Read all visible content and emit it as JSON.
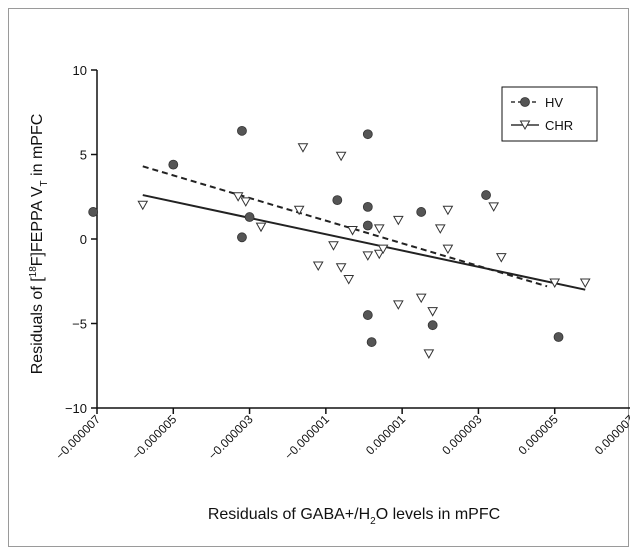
{
  "chart_data": {
    "type": "scatter",
    "xlabel": {
      "pre": "Residuals of GABA+/H",
      "sub": "2",
      "post": "O levels in mPFC"
    },
    "ylabel": {
      "a": "Residuals of [",
      "sup": "18",
      "b": "F]FEPPA V",
      "sub": "T",
      "c": " in mPFC"
    },
    "xlim": [
      -7e-06,
      7e-06
    ],
    "ylim": [
      -10,
      10
    ],
    "x_ticks": [
      -7e-06,
      -5e-06,
      -3e-06,
      -1e-06,
      1e-06,
      3e-06,
      5e-06,
      7e-06
    ],
    "x_tick_labels": [
      "−0.000007",
      "−0.000005",
      "−0.000003",
      "−0.000001",
      "0.000001",
      "0.000003",
      "0.000005",
      "0.000007"
    ],
    "y_ticks": [
      -10,
      -5,
      0,
      5,
      10
    ],
    "y_tick_labels": [
      "−10",
      "−5",
      "0",
      "5",
      "10"
    ],
    "grid": false,
    "legend_position": "top-right",
    "series": [
      {
        "name": "HV",
        "marker": "filled-circle",
        "color": "#555555",
        "points": [
          [
            -7.1e-06,
            1.6
          ],
          [
            -5e-06,
            4.4
          ],
          [
            -3.2e-06,
            6.4
          ],
          [
            -3.2e-06,
            0.1
          ],
          [
            -3e-06,
            1.3
          ],
          [
            -7e-07,
            2.3
          ],
          [
            1e-07,
            6.2
          ],
          [
            1e-07,
            1.9
          ],
          [
            1e-07,
            0.8
          ],
          [
            1e-07,
            -4.5
          ],
          [
            2e-07,
            -6.1
          ],
          [
            1.5e-06,
            1.6
          ],
          [
            1.8e-06,
            -5.1
          ],
          [
            3.2e-06,
            2.6
          ],
          [
            5.1e-06,
            -5.8
          ]
        ],
        "fit": {
          "line_style": "dashed",
          "x": [
            -5.8e-06,
            4.8e-06
          ],
          "y": [
            4.3,
            -2.8
          ]
        }
      },
      {
        "name": "CHR",
        "marker": "open-triangle-down",
        "color": "#555555",
        "points": [
          [
            -5.8e-06,
            2.0
          ],
          [
            -3.3e-06,
            2.5
          ],
          [
            -3.1e-06,
            2.2
          ],
          [
            -2.7e-06,
            0.7
          ],
          [
            -1.7e-06,
            1.7
          ],
          [
            -1.6e-06,
            5.4
          ],
          [
            -1.2e-06,
            -1.6
          ],
          [
            -8e-07,
            -0.4
          ],
          [
            -6e-07,
            4.9
          ],
          [
            -6e-07,
            -1.7
          ],
          [
            -4e-07,
            -2.4
          ],
          [
            -3e-07,
            0.5
          ],
          [
            1e-07,
            -1.0
          ],
          [
            4e-07,
            0.6
          ],
          [
            4e-07,
            -0.9
          ],
          [
            5e-07,
            -0.6
          ],
          [
            9e-07,
            1.1
          ],
          [
            9e-07,
            -3.9
          ],
          [
            1.5e-06,
            -3.5
          ],
          [
            1.7e-06,
            -6.8
          ],
          [
            1.8e-06,
            -4.3
          ],
          [
            2e-06,
            0.6
          ],
          [
            2.2e-06,
            1.7
          ],
          [
            2.2e-06,
            -0.6
          ],
          [
            3.4e-06,
            1.9
          ],
          [
            3.6e-06,
            -1.1
          ],
          [
            5e-06,
            -2.6
          ],
          [
            5.8e-06,
            -2.6
          ]
        ],
        "fit": {
          "line_style": "solid",
          "x": [
            -5.8e-06,
            5.8e-06
          ],
          "y": [
            2.6,
            -3.0
          ]
        }
      }
    ]
  }
}
